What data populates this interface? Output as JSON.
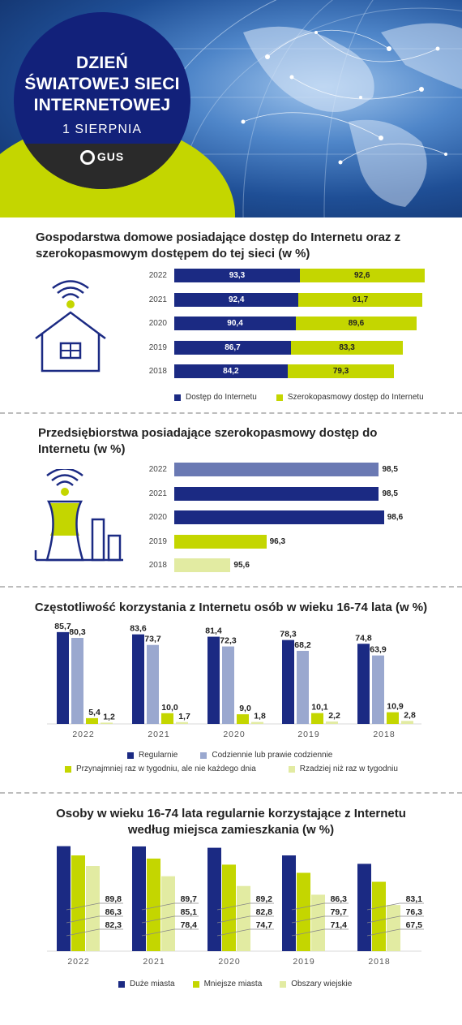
{
  "header": {
    "title_lines": [
      "DZIEŃ",
      "ŚWIATOWEJ SIECI",
      "INTERNETOWEJ"
    ],
    "date": "1 SIERPNIA",
    "logo_text": "GUS"
  },
  "colors": {
    "navy": "#1b2a83",
    "slate": "#6a79b3",
    "periwinkle": "#9aa8cf",
    "lime": "#c4d600",
    "pale_lime": "#e2eba2"
  },
  "section1": {
    "title": "Gospodarstwa domowe posiadające dostęp do Internetu oraz z szerokopasmowym dostępem do tej sieci (w %)",
    "icon": "house-wifi-icon",
    "legend": [
      "Dostęp do Internetu",
      "Szerokopasmowy dostęp do Internetu"
    ]
  },
  "section2": {
    "title": "Przedsiębiorstwa posiadające szerokopasmowy dostęp do Internetu (w %)",
    "icon": "factory-wifi-icon"
  },
  "section3": {
    "title": "Częstotliwość korzystania z Internetu osób w wieku 16-74 lata (w %)",
    "legend": [
      "Regularnie",
      "Codziennie lub prawie codziennie",
      "Przynajmniej raz w tygodniu, ale nie każdego dnia",
      "Rzadziej niż raz w tygodniu"
    ]
  },
  "section4": {
    "title": "Osoby w wieku 16-74 lata regularnie korzystające z Internetu według miejsca zamieszkania (w %)",
    "legend": [
      "Duże miasta",
      "Mniejsze miasta",
      "Obszary wiejskie"
    ]
  },
  "chart_data": [
    {
      "type": "bar",
      "orientation": "horizontal",
      "stacked": true,
      "categories": [
        "2022",
        "2021",
        "2020",
        "2019",
        "2018"
      ],
      "series": [
        {
          "name": "Dostęp do Internetu",
          "values": [
            93.3,
            92.4,
            90.4,
            86.7,
            84.2
          ],
          "labels": [
            "93,3",
            "92,4",
            "90,4",
            "86,7",
            "84,2"
          ]
        },
        {
          "name": "Szerokopasmowy dostep do Internetu",
          "values": [
            92.6,
            91.7,
            89.6,
            83.3,
            79.3
          ],
          "labels": [
            "92,6",
            "91,7",
            "89,6",
            "83,3",
            "79,3"
          ]
        }
      ],
      "legend_position": "bottom"
    },
    {
      "type": "bar",
      "orientation": "horizontal",
      "categories": [
        "2022",
        "2021",
        "2020",
        "2019",
        "2018"
      ],
      "values": [
        98.5,
        98.5,
        98.6,
        96.3,
        95.6
      ],
      "labels": [
        "98,5",
        "98,5",
        "98,6",
        "96,3",
        "95,6"
      ],
      "bar_colors": [
        "#6a79b3",
        "#1b2a83",
        "#1b2a83",
        "#c4d600",
        "#e2eba2"
      ],
      "xlim": [
        94.5,
        99
      ]
    },
    {
      "type": "bar",
      "categories": [
        "2022",
        "2021",
        "2020",
        "2019",
        "2018"
      ],
      "series": [
        {
          "name": "Regularnie",
          "values": [
            85.7,
            83.6,
            81.4,
            78.3,
            74.8
          ],
          "labels": [
            "85,7",
            "83,6",
            "81,4",
            "78,3",
            "74,8"
          ]
        },
        {
          "name": "Codziennie lub prawie codziennie",
          "values": [
            80.3,
            73.7,
            72.3,
            68.2,
            63.9
          ],
          "labels": [
            "80,3",
            "73,7",
            "72,3",
            "68,2",
            "63,9"
          ]
        },
        {
          "name": "Przynajmniej raz w tygodniu, ale nie każdego dnia",
          "values": [
            5.4,
            10.0,
            9.0,
            10.1,
            10.9
          ],
          "labels": [
            "5,4",
            "10,0",
            "9,0",
            "10,1",
            "10,9"
          ]
        },
        {
          "name": "Rzadziej niż raz w tygodniu",
          "values": [
            1.2,
            1.7,
            1.8,
            2.2,
            2.8
          ],
          "labels": [
            "1,2",
            "1,7",
            "1,8",
            "2,2",
            "2,8"
          ]
        }
      ],
      "ylim": [
        0,
        90
      ],
      "legend_position": "bottom"
    },
    {
      "type": "bar",
      "categories": [
        "2022",
        "2021",
        "2020",
        "2019",
        "2018"
      ],
      "series": [
        {
          "name": "Duże miasta",
          "values": [
            89.8,
            89.7,
            89.2,
            86.3,
            83.1
          ],
          "labels": [
            "89,8",
            "89,7",
            "89,2",
            "86,3",
            "83,1"
          ]
        },
        {
          "name": "Mniejsze miasta",
          "values": [
            86.3,
            85.1,
            82.8,
            79.7,
            76.3
          ],
          "labels": [
            "86,3",
            "85,1",
            "82,8",
            "79,7",
            "76,3"
          ]
        },
        {
          "name": "Obszary wiejskie",
          "values": [
            82.3,
            78.4,
            74.7,
            71.4,
            67.5
          ],
          "labels": [
            "82,3",
            "78,4",
            "74,7",
            "71,4",
            "67,5"
          ]
        }
      ],
      "legend_position": "bottom"
    }
  ]
}
